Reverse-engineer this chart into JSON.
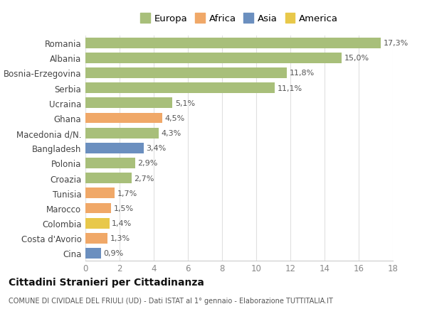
{
  "countries": [
    "Cina",
    "Costa d'Avorio",
    "Colombia",
    "Marocco",
    "Tunisia",
    "Croazia",
    "Polonia",
    "Bangladesh",
    "Macedonia d/N.",
    "Ghana",
    "Ucraina",
    "Serbia",
    "Bosnia-Erzegovina",
    "Albania",
    "Romania"
  ],
  "values": [
    0.9,
    1.3,
    1.4,
    1.5,
    1.7,
    2.7,
    2.9,
    3.4,
    4.3,
    4.5,
    5.1,
    11.1,
    11.8,
    15.0,
    17.3
  ],
  "labels": [
    "0,9%",
    "1,3%",
    "1,4%",
    "1,5%",
    "1,7%",
    "2,7%",
    "2,9%",
    "3,4%",
    "4,3%",
    "4,5%",
    "5,1%",
    "11,1%",
    "11,8%",
    "15,0%",
    "17,3%"
  ],
  "colors": [
    "#6b8fbf",
    "#f0a868",
    "#e8c84a",
    "#f0a868",
    "#f0a868",
    "#a8bf7a",
    "#a8bf7a",
    "#6b8fbf",
    "#a8bf7a",
    "#f0a868",
    "#a8bf7a",
    "#a8bf7a",
    "#a8bf7a",
    "#a8bf7a",
    "#a8bf7a"
  ],
  "legend_labels": [
    "Europa",
    "Africa",
    "Asia",
    "America"
  ],
  "legend_colors": [
    "#a8bf7a",
    "#f0a868",
    "#6b8fbf",
    "#e8c84a"
  ],
  "title": "Cittadini Stranieri per Cittadinanza",
  "subtitle": "COMUNE DI CIVIDALE DEL FRIULI (UD) - Dati ISTAT al 1° gennaio - Elaborazione TUTTITALIA.IT",
  "xlim": [
    0,
    18
  ],
  "xticks": [
    0,
    2,
    4,
    6,
    8,
    10,
    12,
    14,
    16,
    18
  ],
  "background_color": "#ffffff",
  "bar_background": "#ffffff",
  "grid_color": "#e0e0e0",
  "label_fontsize": 8.0,
  "bar_height": 0.7
}
